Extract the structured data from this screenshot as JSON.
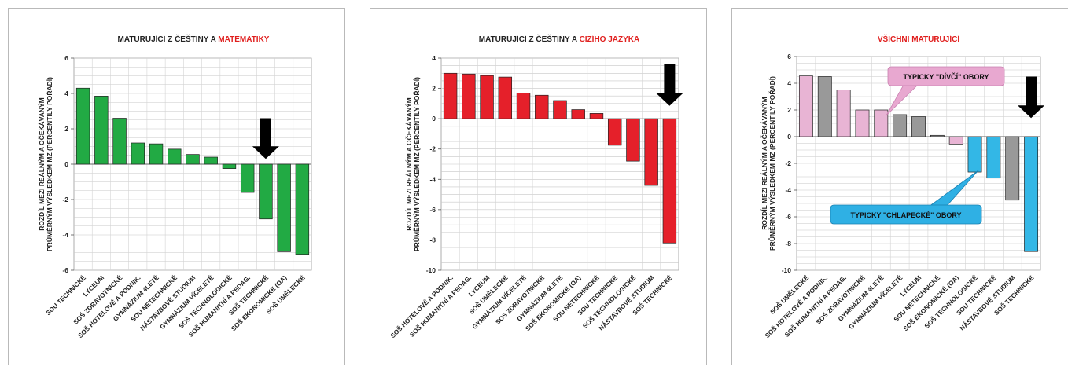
{
  "chart_data": [
    {
      "type": "bar",
      "title_prefix": "MATURUJÍCÍ Z ČEŠTINY A ",
      "title_highlight": "MATEMATIKY",
      "ylabel_line1": "ROZDÍL MEZI REÁLNÝM A OČEKÁVANÝM",
      "ylabel_line2": "PRŮMĚRNÝM VÝSLEDKEM MZ (PERCENTILY POŘADÍ)",
      "ylim": [
        -6,
        6
      ],
      "yticks": [
        -6,
        -4,
        -2,
        0,
        2,
        4,
        6
      ],
      "categories": [
        "SOU TECHNICKÉ",
        "LYCEUM",
        "SOŠ ZDRAVOTNICKÉ",
        "SOŠ HOTELOVÉ A PODNIK.",
        "GYMNÁZIUM 4LETÉ",
        "SOU NETECHNICKÉ",
        "NÁSTAVBOVÉ STUDIUM",
        "GYMNÁZIUM VÍCELETÉ",
        "SOŠ TECHNOLOGICKÉ",
        "SOŠ HUMANITNÍ A PEDAG.",
        "SOŠ TECHNICKÉ",
        "SOŠ EKONOMICKÉ (OA)",
        "SOŠ UMĚLECKÉ"
      ],
      "values": [
        4.3,
        3.85,
        2.6,
        1.2,
        1.15,
        0.85,
        0.55,
        0.4,
        -0.25,
        -1.6,
        -3.1,
        -4.95,
        -5.1
      ],
      "colors": [
        "#22aa44",
        "#22aa44",
        "#22aa44",
        "#22aa44",
        "#22aa44",
        "#22aa44",
        "#22aa44",
        "#22aa44",
        "#22aa44",
        "#22aa44",
        "#22aa44",
        "#22aa44",
        "#22aa44"
      ],
      "grid": true,
      "arrow_category_index": 10
    },
    {
      "type": "bar",
      "title_prefix": "MATURUJÍCÍ Z ČEŠTINY A ",
      "title_highlight": "CIZÍHO JAZYKA",
      "ylabel_line1": "ROZDÍL MEZI REÁLNÝM A OČEKÁVANÝM",
      "ylabel_line2": "PRŮMĚRNÝM VÝSLEDKEM MZ (PERCENTILY POŘADÍ)",
      "ylim": [
        -10,
        4
      ],
      "yticks": [
        -10,
        -8,
        -6,
        -4,
        -2,
        0,
        2,
        4
      ],
      "categories": [
        "SOŠ HOTELOVÉ A PODNIK.",
        "SOŠ HUMANITNÍ A PEDAG.",
        "LYCEUM",
        "SOŠ UMĚLECKÉ",
        "GYMNÁZIUM VÍCELETÉ",
        "SOŠ ZDRAVOTNICKÉ",
        "GYMNÁZIUM 4LETÉ",
        "SOŠ EKONOMICKÉ (OA)",
        "SOU NETECHNICKÉ",
        "SOU TECHNICKÉ",
        "SOŠ TECHNOLOGICKÉ",
        "NÁSTAVBOVÉ STUDIUM",
        "SOŠ TECHNICKÉ"
      ],
      "values": [
        3.0,
        2.95,
        2.85,
        2.75,
        1.7,
        1.55,
        1.2,
        0.6,
        0.35,
        -1.75,
        -2.8,
        -4.4,
        -8.2
      ],
      "colors": [
        "#e5202a",
        "#e5202a",
        "#e5202a",
        "#e5202a",
        "#e5202a",
        "#e5202a",
        "#e5202a",
        "#e5202a",
        "#e5202a",
        "#e5202a",
        "#e5202a",
        "#e5202a",
        "#e5202a"
      ],
      "grid": true,
      "arrow_category_index": 12
    },
    {
      "type": "bar",
      "title_prefix": "",
      "title_highlight": "VŠICHNI MATURUJÍCÍ",
      "ylabel_line1": "ROZDÍL MEZI REÁLNÝM A OČEKÁVANÝM",
      "ylabel_line2": "PRŮMĚRNÝM VÝSLEDKEM MZ (PERCENTILY POŘADÍ)",
      "ylim": [
        -10,
        6
      ],
      "yticks": [
        -10,
        -8,
        -6,
        -4,
        -2,
        0,
        2,
        4,
        6
      ],
      "categories": [
        "SOŠ UMĚLECKÉ",
        "SOŠ HOTELOVÉ A PODNIK.",
        "SOŠ HUMANITNÍ A PEDAG.",
        "SOŠ ZDRAVOTNICKÉ",
        "GYMNÁZIUM 4LETÉ",
        "GYMNÁZIUM VÍCELETÉ",
        "LYCEUM",
        "SOU NETECHNICKÉ",
        "SOŠ EKONOMICKÉ (OA)",
        "SOŠ TECHNOLOGICKÉ",
        "SOU TECHNICKÉ",
        "NÁSTAVBOVÉ STUDIUM",
        "SOŠ TECHNICKÉ"
      ],
      "values": [
        4.55,
        4.5,
        3.5,
        2.0,
        2.0,
        1.65,
        1.5,
        0.1,
        -0.55,
        -2.65,
        -3.1,
        -4.75,
        -8.6
      ],
      "colors": [
        "#e8b4d4",
        "#999999",
        "#e8b4d4",
        "#e8b4d4",
        "#e8b4d4",
        "#999999",
        "#999999",
        "#999999",
        "#e8b4d4",
        "#33b7e6",
        "#33b7e6",
        "#999999",
        "#33b7e6"
      ],
      "grid": true,
      "arrow_category_index": 12,
      "callouts": [
        {
          "text": "TYPICKY \"DÍVČÍ\" OBORY",
          "color": "#e8a8d0"
        },
        {
          "text": "TYPICKY \"CHLAPECKÉ\" OBORY",
          "color": "#2fb0e4"
        }
      ]
    }
  ]
}
